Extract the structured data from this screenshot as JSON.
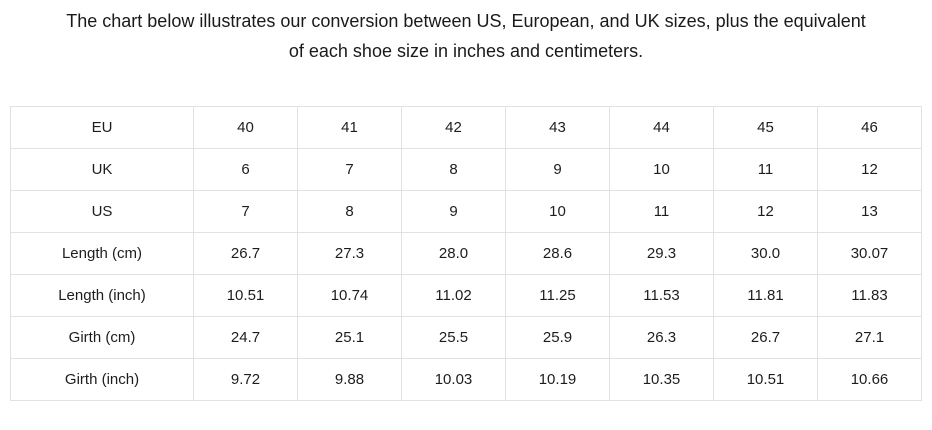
{
  "description": {
    "line1": "The chart below illustrates our conversion between US, European, and UK sizes, plus the equivalent",
    "line2": "of each shoe size in inches and centimeters."
  },
  "colors": {
    "text": "#1a1a1a",
    "table_border": "#e2e2e2",
    "background": "#ffffff"
  },
  "chart_data": {
    "type": "table",
    "title": "Shoe size conversion chart (US, European, UK sizes with inch and centimeter equivalents)",
    "columns_per_row": 7,
    "rows": [
      {
        "label": "EU",
        "values": [
          "40",
          "41",
          "42",
          "43",
          "44",
          "45",
          "46"
        ]
      },
      {
        "label": "UK",
        "values": [
          "6",
          "7",
          "8",
          "9",
          "10",
          "11",
          "12"
        ]
      },
      {
        "label": "US",
        "values": [
          "7",
          "8",
          "9",
          "10",
          "11",
          "12",
          "13"
        ]
      },
      {
        "label": "Length (cm)",
        "values": [
          "26.7",
          "27.3",
          "28.0",
          "28.6",
          "29.3",
          "30.0",
          "30.07"
        ]
      },
      {
        "label": "Length (inch)",
        "values": [
          "10.51",
          "10.74",
          "11.02",
          "11.25",
          "11.53",
          "11.81",
          "11.83"
        ]
      },
      {
        "label": "Girth (cm)",
        "values": [
          "24.7",
          "25.1",
          "25.5",
          "25.9",
          "26.3",
          "26.7",
          "27.1"
        ]
      },
      {
        "label": "Girth (inch)",
        "values": [
          "9.72",
          "9.88",
          "10.03",
          "10.19",
          "10.35",
          "10.51",
          "10.66"
        ]
      }
    ]
  }
}
